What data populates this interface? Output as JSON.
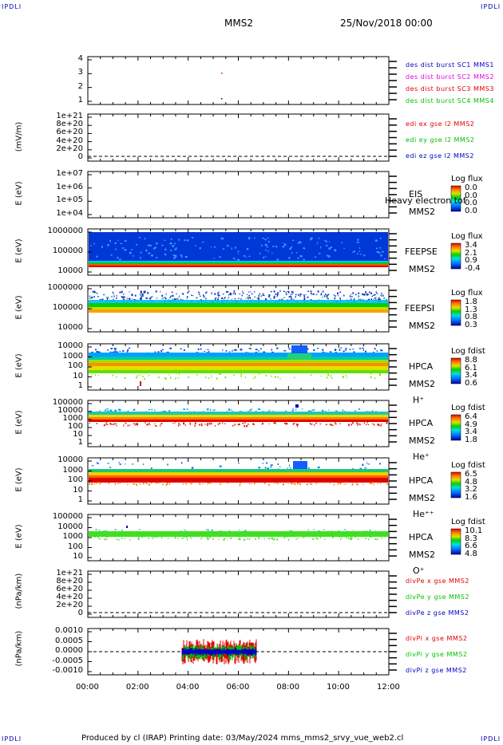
{
  "corners": {
    "tl": "IPDLI",
    "tr": "IPDLI",
    "bl": "IPDLI",
    "br": "IPDLI"
  },
  "header": {
    "spacecraft": "MMS2",
    "date": "25/Nov/2018 00:00"
  },
  "footer": "Produced by cl (IRAP)    Printing date: 03/May/2024    mms_mms2_srvy_vue_web2.cl",
  "colors": {
    "blue": "#0000c0",
    "red": "#e00000",
    "green": "#00c000",
    "magenta": "#e000e0"
  },
  "chart_data": {
    "type": "heatmap",
    "xlim": [
      "00:00",
      "12:00"
    ],
    "x_ticks": [
      "00:00",
      "02:00",
      "04:00",
      "06:00",
      "08:00",
      "10:00",
      "12:00"
    ],
    "panels": [
      {
        "id": "burst",
        "ylabel": "",
        "y_ticks": [
          "4",
          "3",
          "2",
          "1"
        ],
        "legend": [
          {
            "text": "des dist burst SC1 MMS1",
            "color": "#0000c0"
          },
          {
            "text": "des dist burst SC2 MMS2",
            "color": "#e000e0"
          },
          {
            "text": "des dist burst SC3 MMS3",
            "color": "#e00000"
          },
          {
            "text": "des dist burst SC4 MMS4",
            "color": "#00c000"
          }
        ]
      },
      {
        "id": "edi",
        "ylabel": "(mV/m)",
        "y_ticks": [
          "1e+21",
          "8e+20",
          "6e+20",
          "4e+20",
          "2e+20",
          "0"
        ],
        "legend": [
          {
            "text": "edi ex gse l2 MMS2",
            "color": "#e00000"
          },
          {
            "text": "edi ey gse l2 MMS2",
            "color": "#00c000"
          },
          {
            "text": "edi ez gse l2 MMS2",
            "color": "#0000c0"
          }
        ]
      },
      {
        "id": "eis",
        "ylabel": "E (eV)",
        "y_ticks": [
          "1e+07",
          "1e+06",
          "1e+05",
          "1e+04"
        ],
        "instrument": [
          "EIS",
          "MMS2"
        ],
        "overlay": "Heavy electron tof",
        "cbar_title": "Log flux",
        "cbar_ticks": [
          "0.0",
          "0.0",
          "0.0",
          "0.0"
        ]
      },
      {
        "id": "feepse",
        "ylabel": "E (eV)",
        "y_ticks": [
          "1000000",
          "100000",
          "10000"
        ],
        "instrument": [
          "FEEPSE",
          "MMS2"
        ],
        "cbar_title": "Log flux",
        "cbar_ticks": [
          "3.4",
          "2.1",
          "0.9",
          "-0.4"
        ]
      },
      {
        "id": "feepsi",
        "ylabel": "E (eV)",
        "y_ticks": [
          "1000000",
          "100000",
          "10000"
        ],
        "instrument": [
          "FEEPSI",
          "MMS2"
        ],
        "cbar_title": "Log flux",
        "cbar_ticks": [
          "1.8",
          "1.3",
          "0.8",
          "0.3"
        ]
      },
      {
        "id": "hpca_h",
        "ylabel": "E (eV)",
        "y_ticks": [
          "10000",
          "1000",
          "100",
          "10",
          "1"
        ],
        "instrument": [
          "HPCA",
          "MMS2",
          "H⁺"
        ],
        "cbar_title": "Log fdist",
        "cbar_ticks": [
          "8.8",
          "6.1",
          "3.4",
          "0.6"
        ]
      },
      {
        "id": "hpca_he",
        "ylabel": "E (eV)",
        "y_ticks": [
          "100000",
          "10000",
          "1000",
          "100",
          "10",
          "1"
        ],
        "instrument": [
          "HPCA",
          "MMS2",
          "He⁺"
        ],
        "cbar_title": "Log fdist",
        "cbar_ticks": [
          "6.4",
          "4.9",
          "3.4",
          "1.8"
        ]
      },
      {
        "id": "hpca_hepp",
        "ylabel": "E (eV)",
        "y_ticks": [
          "10000",
          "1000",
          "100",
          "10",
          "1"
        ],
        "instrument": [
          "HPCA",
          "MMS2",
          "He⁺⁺"
        ],
        "cbar_title": "Log fdist",
        "cbar_ticks": [
          "6.5",
          "4.8",
          "3.2",
          "1.6"
        ]
      },
      {
        "id": "hpca_o",
        "ylabel": "E (eV)",
        "y_ticks": [
          "100000",
          "10000",
          "1000",
          "100",
          "10"
        ],
        "instrument": [
          "HPCA",
          "MMS2",
          "O⁺"
        ],
        "cbar_title": "Log fdist",
        "cbar_ticks": [
          "10.1",
          "8.3",
          "6.6",
          "4.8"
        ]
      },
      {
        "id": "divpe",
        "ylabel": "(nPa/km)",
        "y_ticks": [
          "1e+21",
          "8e+20",
          "6e+20",
          "4e+20",
          "2e+20",
          "0"
        ],
        "legend": [
          {
            "text": "divPe x gse MMS2",
            "color": "#e00000"
          },
          {
            "text": "divPe y gse MMS2",
            "color": "#00c000"
          },
          {
            "text": "divPe z gse MMS2",
            "color": "#0000c0"
          }
        ]
      },
      {
        "id": "divpi",
        "ylabel": "(nPa/km)",
        "y_ticks": [
          "0.0010",
          "0.0005",
          "0.0000",
          "-0.0005",
          "-0.0010"
        ],
        "legend": [
          {
            "text": "divPi x gse MMS2",
            "color": "#e00000"
          },
          {
            "text": "divPi y gse MMS2",
            "color": "#00c000"
          },
          {
            "text": "divPi z gse MMS2",
            "color": "#0000c0"
          }
        ]
      }
    ]
  }
}
